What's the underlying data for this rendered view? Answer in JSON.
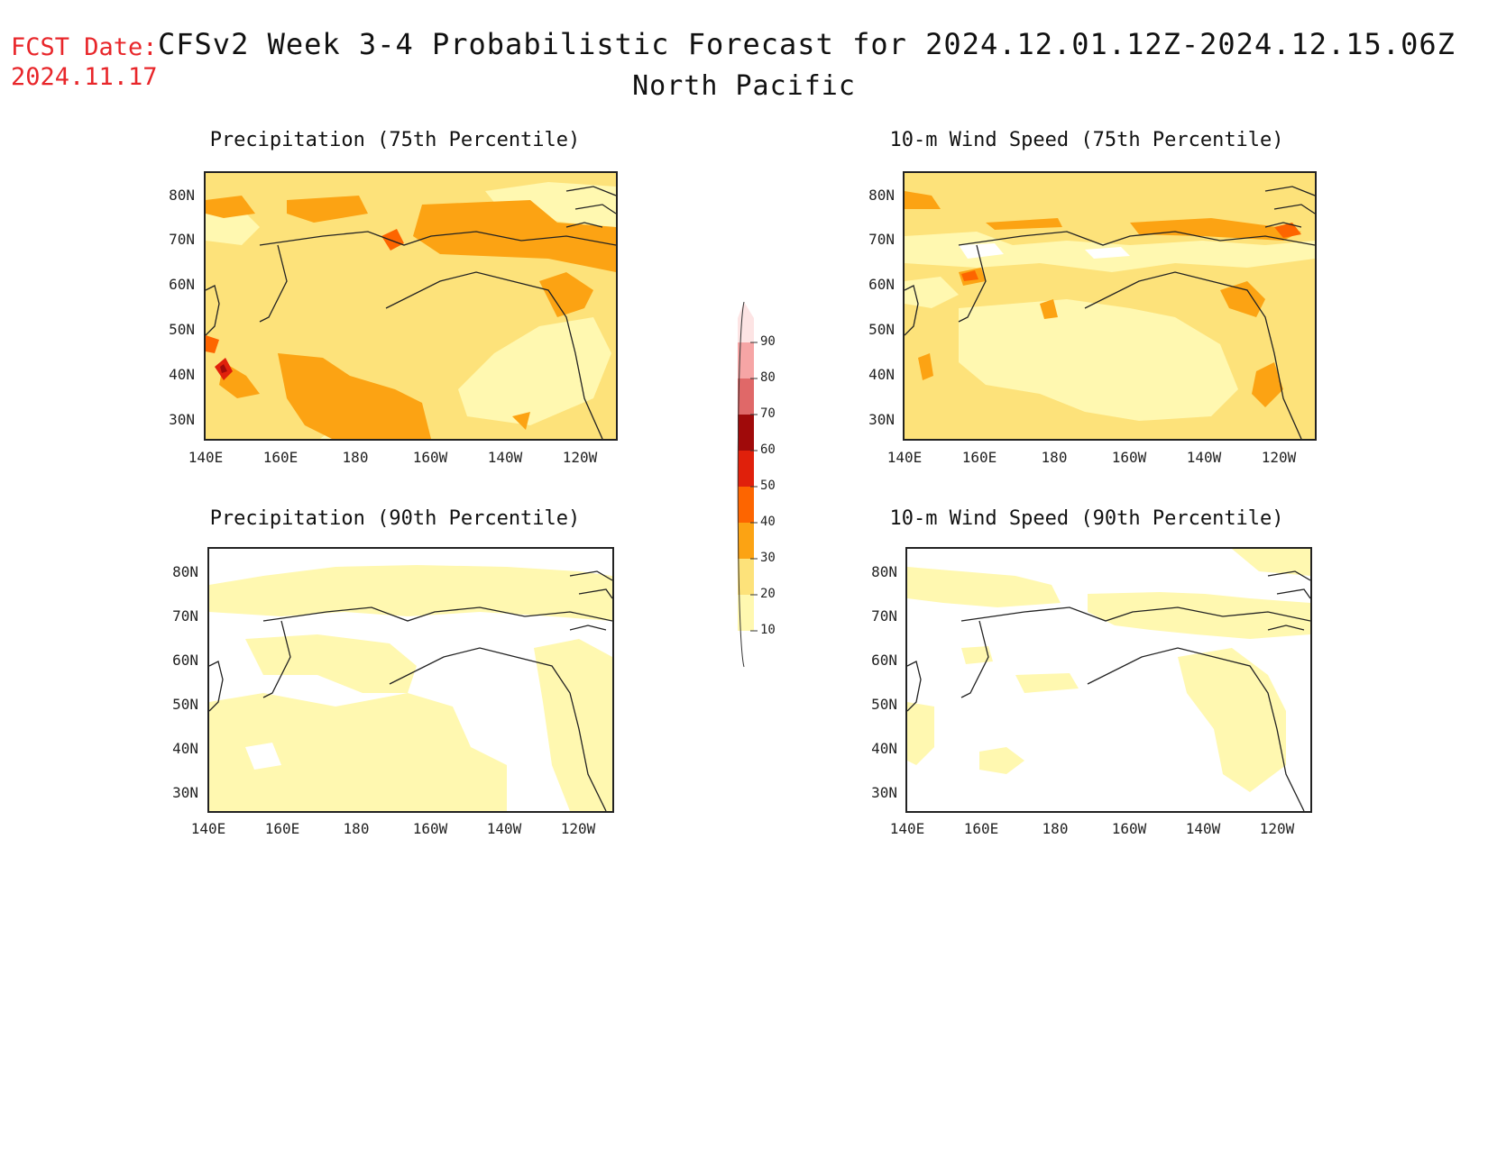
{
  "header": {
    "fcst_label": "FCST Date:",
    "fcst_date": "2024.11.17",
    "title": "CFSv2 Week 3-4 Probabilistic Forecast for 2024.12.01.12Z-2024.12.15.06Z",
    "region": "North Pacific"
  },
  "panels": [
    {
      "title": "Precipitation (75th Percentile)"
    },
    {
      "title": "10-m Wind Speed (75th Percentile)"
    },
    {
      "title": "Precipitation (90th Percentile)"
    },
    {
      "title": "10-m Wind Speed (90th Percentile)"
    }
  ],
  "axes": {
    "lat_labels": [
      "80N",
      "70N",
      "60N",
      "50N",
      "40N",
      "30N"
    ],
    "lon_labels": [
      "140E",
      "160E",
      "180",
      "160W",
      "140W",
      "120W"
    ]
  },
  "colorbar": {
    "labels": [
      "90",
      "80",
      "70",
      "60",
      "50",
      "40",
      "30",
      "20",
      "10"
    ],
    "colors": {
      "10-20": "#fff8b0",
      "20-30": "#fde27a",
      "30-40": "#fca313",
      "40-50": "#fd6500",
      "50-60": "#e0200b",
      "60-70": "#a00a0a",
      "70-80": "#e06868",
      "80-90": "#f6a5a5",
      "90-100": "#fde4e4"
    }
  }
}
